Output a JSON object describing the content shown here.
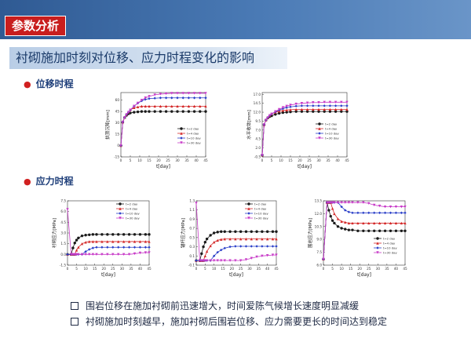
{
  "header": {
    "title": "参数分析"
  },
  "subtitle": "衬砌施加时刻对位移、应力时程变化的影响",
  "sections": {
    "displacement": "位移时程",
    "stress": "应力时程"
  },
  "bullets": [
    "围岩位移在施加衬砌前迅速增大，时间爱陈气候增长速度明显减缓",
    "衬砌施加时刻越早，施加衬砌后围岩位移、应力需要更长的时间达到稳定"
  ],
  "colors": {
    "s1": "#1a1a1a",
    "s2": "#d42a2a",
    "s3": "#2a3fc8",
    "s4": "#c83cc8"
  },
  "chart_data": [
    {
      "type": "line",
      "id": "c1",
      "xlabel": "t[day]",
      "ylabel": "拱顶沉降[mm]",
      "xlim": [
        0,
        45
      ],
      "ylim": [
        -15,
        70
      ],
      "xticks": [
        0,
        5,
        10,
        15,
        20,
        25,
        30,
        35,
        40,
        45
      ],
      "yticks": [
        -15,
        0,
        15,
        30,
        45,
        60,
        75
      ],
      "ytick_labels": [
        "-15",
        "0",
        "15",
        "30",
        "45",
        "60",
        "75"
      ],
      "x": [
        0,
        1,
        2,
        3,
        4,
        5,
        7,
        9,
        11,
        13,
        15,
        18,
        21,
        24,
        27,
        30,
        33,
        36,
        39,
        42,
        45
      ],
      "series": [
        {
          "name": "t=2 day",
          "values": [
            0,
            31,
            37,
            40,
            42,
            43,
            44,
            44.5,
            45,
            45,
            45,
            45,
            45,
            45,
            45,
            45,
            45,
            45,
            45,
            45,
            45
          ]
        },
        {
          "name": "t=4 day",
          "values": [
            0,
            31,
            37,
            41,
            44,
            47,
            50,
            51,
            52,
            52,
            52,
            52,
            52,
            52,
            52,
            52,
            52,
            52,
            52,
            52,
            52
          ]
        },
        {
          "name": "t=10 day",
          "values": [
            0,
            31,
            37,
            41,
            44,
            47,
            52,
            56,
            59,
            61,
            62,
            62.5,
            63,
            63,
            63,
            63,
            63,
            63,
            63,
            63,
            63
          ]
        },
        {
          "name": "t=30 day",
          "values": [
            0,
            31,
            37,
            41,
            44,
            47,
            52,
            56,
            60,
            63,
            65,
            67,
            68,
            68.5,
            69,
            69,
            69,
            69,
            69,
            69,
            69
          ]
        }
      ]
    },
    {
      "type": "line",
      "id": "c2",
      "xlabel": "t[day]",
      "ylabel": "水平收敛[mm]",
      "xlim": [
        0,
        45
      ],
      "ylim": [
        -0.5,
        17.5
      ],
      "xticks": [
        0,
        5,
        10,
        15,
        20,
        25,
        30,
        35,
        40,
        45
      ],
      "yticks": [
        -0.5,
        2.0,
        4.5,
        7.0,
        9.5,
        12.0,
        14.5,
        17.0
      ],
      "ytick_labels": [
        "-0.5",
        "2.0",
        "4.5",
        "7.0",
        "9.5",
        "12.0",
        "14.5",
        "17.0"
      ],
      "x": [
        0,
        1,
        2,
        3,
        4,
        5,
        7,
        9,
        11,
        13,
        15,
        18,
        21,
        24,
        27,
        30,
        33,
        36,
        39,
        42,
        45
      ],
      "series": [
        {
          "name": "t=2 day",
          "values": [
            0,
            8.5,
            9.8,
            10.4,
            10.8,
            11.0,
            11.4,
            11.7,
            11.9,
            12.0,
            12.1,
            12.2,
            12.2,
            12.2,
            12.2,
            12.2,
            12.2,
            12.2,
            12.2,
            12.2,
            12.2
          ]
        },
        {
          "name": "t=4 day",
          "values": [
            0,
            8.5,
            9.8,
            10.5,
            11.1,
            11.5,
            12.0,
            12.3,
            12.5,
            12.6,
            12.7,
            12.8,
            12.8,
            12.8,
            12.8,
            12.8,
            12.8,
            12.8,
            12.8,
            12.8,
            12.8
          ]
        },
        {
          "name": "t=10 day",
          "values": [
            0,
            8.5,
            9.8,
            10.5,
            11.1,
            11.5,
            12.1,
            12.6,
            13.0,
            13.3,
            13.5,
            13.7,
            13.8,
            13.8,
            13.8,
            13.8,
            13.8,
            13.8,
            13.8,
            13.8,
            13.8
          ]
        },
        {
          "name": "t=30 day",
          "values": [
            0,
            8.5,
            9.8,
            10.5,
            11.1,
            11.5,
            12.2,
            12.8,
            13.3,
            13.7,
            14.0,
            14.3,
            14.5,
            14.6,
            14.7,
            14.7,
            14.8,
            14.8,
            14.8,
            14.8,
            14.8
          ]
        }
      ]
    },
    {
      "type": "line",
      "id": "c3",
      "xlabel": "t[day]",
      "ylabel": "衬砌应力[MPa]",
      "xlim": [
        0,
        45
      ],
      "ylim": [
        -1.5,
        7.5
      ],
      "xticks": [
        0,
        5,
        10,
        15,
        20,
        25,
        30,
        35,
        40,
        45
      ],
      "yticks": [
        -1.5,
        0.0,
        1.5,
        3.0,
        4.5,
        6.0,
        7.5
      ],
      "ytick_labels": [
        "-1.5",
        "0.0",
        "1.5",
        "3.0",
        "4.5",
        "6.0",
        "7.5"
      ],
      "x": [
        0,
        2,
        3,
        4,
        5,
        6,
        8,
        10,
        12,
        14,
        16,
        19,
        22,
        25,
        28,
        31,
        34,
        37,
        40,
        43,
        45
      ],
      "series": [
        {
          "name": "t=2 day",
          "values": [
            0,
            0,
            0.9,
            1.6,
            2.0,
            2.3,
            2.6,
            2.7,
            2.75,
            2.8,
            2.8,
            2.8,
            2.8,
            2.8,
            2.8,
            2.8,
            2.8,
            2.8,
            2.8,
            2.8,
            2.8
          ]
        },
        {
          "name": "t=4 day",
          "values": [
            0,
            0,
            0,
            0,
            0.6,
            1.0,
            1.5,
            1.7,
            1.8,
            1.8,
            1.8,
            1.8,
            1.8,
            1.8,
            1.8,
            1.8,
            1.8,
            1.8,
            1.8,
            1.8,
            1.8
          ]
        },
        {
          "name": "t=10 day",
          "values": [
            0,
            0,
            0,
            0,
            0,
            0,
            0,
            0.4,
            0.7,
            0.9,
            1.0,
            1.0,
            1.0,
            1.0,
            1.0,
            1.0,
            1.0,
            1.0,
            1.0,
            1.0,
            1.0
          ]
        },
        {
          "name": "t=30 day",
          "values": [
            6.3,
            0,
            0,
            0,
            0,
            0,
            0,
            0,
            0,
            0,
            0,
            0,
            0,
            0,
            0,
            0,
            0,
            0.1,
            0.2,
            0.25,
            0.25
          ]
        }
      ]
    },
    {
      "type": "line",
      "id": "c4",
      "xlabel": "t[day]",
      "ylabel": "锚杆应力[MPa]",
      "xlim": [
        0,
        45
      ],
      "ylim": [
        -0.1,
        1.3
      ],
      "xticks": [
        0,
        5,
        10,
        15,
        20,
        25,
        30,
        35,
        40,
        45
      ],
      "yticks": [
        -0.1,
        0.1,
        0.3,
        0.5,
        0.7,
        0.9,
        1.1,
        1.3
      ],
      "ytick_labels": [
        "-0.1",
        "0.1",
        "0.3",
        "0.5",
        "0.7",
        "0.9",
        "1.1",
        "1.3"
      ],
      "x": [
        0,
        2,
        3,
        4,
        5,
        6,
        8,
        10,
        12,
        14,
        16,
        19,
        22,
        25,
        28,
        31,
        34,
        37,
        40,
        43,
        45
      ],
      "series": [
        {
          "name": "t=2 day",
          "values": [
            0,
            0,
            0.15,
            0.3,
            0.4,
            0.47,
            0.55,
            0.6,
            0.62,
            0.63,
            0.63,
            0.63,
            0.63,
            0.63,
            0.63,
            0.63,
            0.63,
            0.63,
            0.63,
            0.63,
            0.63
          ]
        },
        {
          "name": "t=4 day",
          "values": [
            0,
            0,
            0,
            0,
            0.1,
            0.2,
            0.32,
            0.4,
            0.44,
            0.46,
            0.47,
            0.47,
            0.47,
            0.47,
            0.47,
            0.47,
            0.47,
            0.47,
            0.47,
            0.47,
            0.47
          ]
        },
        {
          "name": "t=10 day",
          "values": [
            0,
            0,
            0,
            0,
            0,
            0,
            0,
            0.1,
            0.18,
            0.23,
            0.27,
            0.3,
            0.31,
            0.31,
            0.31,
            0.31,
            0.31,
            0.31,
            0.31,
            0.31,
            0.31
          ]
        },
        {
          "name": "t=30 day",
          "values": [
            1.25,
            0,
            0,
            0,
            0,
            0,
            0,
            0,
            0,
            0,
            0,
            0,
            0,
            0,
            0.02,
            0.05,
            0.08,
            0.1,
            0.11,
            0.12,
            0.12
          ]
        }
      ]
    },
    {
      "type": "line",
      "id": "c5",
      "xlabel": "t[day]",
      "ylabel": "围岩应力[MPa]",
      "xlim": [
        0,
        45
      ],
      "ylim": [
        6.0,
        13.5
      ],
      "xticks": [
        0,
        5,
        10,
        15,
        20,
        25,
        30,
        35,
        40,
        45
      ],
      "yticks": [
        6.0,
        7.5,
        9.0,
        10.5,
        12.0,
        13.5
      ],
      "ytick_labels": [
        "6.0",
        "7.5",
        "9.0",
        "10.5",
        "12.0",
        "13.5"
      ],
      "x": [
        0,
        2,
        3,
        4,
        5,
        6,
        8,
        10,
        12,
        14,
        16,
        19,
        22,
        25,
        28,
        31,
        34,
        37,
        40,
        43,
        45
      ],
      "series": [
        {
          "name": "t=2 day",
          "values": [
            6.7,
            13.3,
            12.4,
            11.7,
            11.2,
            10.9,
            10.5,
            10.3,
            10.2,
            10.1,
            10.1,
            10.0,
            10.0,
            10.0,
            10.0,
            10.0,
            10.0,
            10.0,
            10.0,
            10.0,
            10.0
          ]
        },
        {
          "name": "t=4 day",
          "values": [
            6.7,
            13.3,
            13.3,
            13.3,
            12.6,
            12.0,
            11.4,
            11.1,
            11.0,
            10.9,
            10.9,
            10.9,
            10.9,
            10.9,
            10.9,
            10.9,
            10.9,
            10.9,
            10.9,
            10.9,
            10.9
          ]
        },
        {
          "name": "t=10 day",
          "values": [
            6.7,
            13.3,
            13.3,
            13.3,
            13.3,
            13.3,
            13.3,
            12.8,
            12.4,
            12.2,
            12.1,
            12.1,
            12.1,
            12.1,
            12.1,
            12.1,
            12.1,
            12.1,
            12.1,
            12.1,
            12.1
          ]
        },
        {
          "name": "t=30 day",
          "values": [
            6.7,
            13.3,
            13.3,
            13.3,
            13.3,
            13.3,
            13.3,
            13.3,
            13.3,
            13.3,
            13.3,
            13.3,
            13.3,
            13.2,
            13.0,
            12.9,
            12.8,
            12.8,
            12.8,
            12.8,
            12.8
          ]
        }
      ]
    }
  ]
}
